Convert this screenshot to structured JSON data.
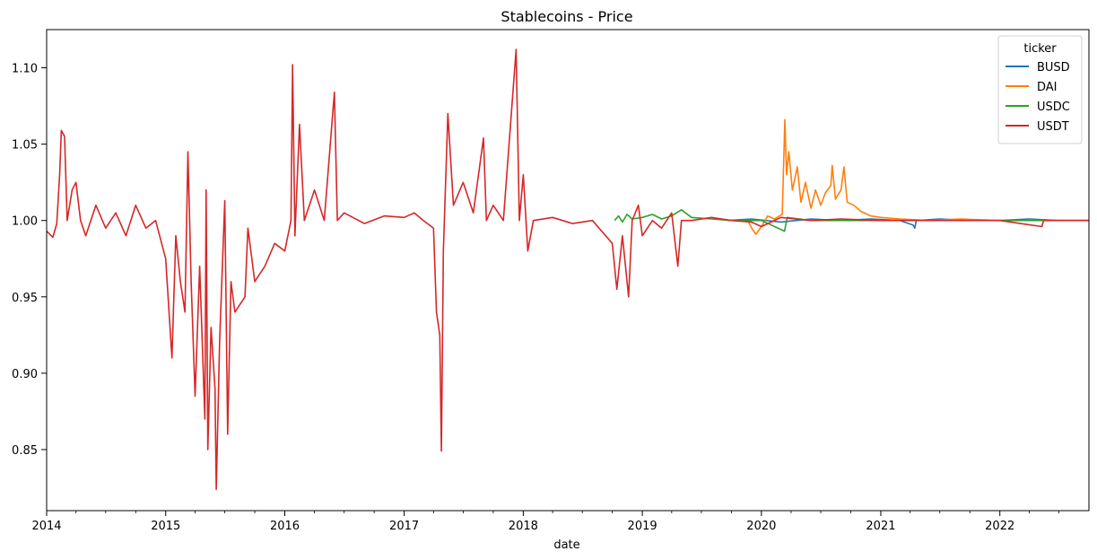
{
  "chart_data": {
    "type": "line",
    "title": "Stablecoins - Price",
    "xlabel": "date",
    "ylabel": "",
    "xlim": [
      "2014-01-01",
      "2022-10-01"
    ],
    "ylim": [
      0.81,
      1.125
    ],
    "x_ticks": [
      "2014",
      "2015",
      "2016",
      "2017",
      "2018",
      "2019",
      "2020",
      "2021",
      "2022"
    ],
    "y_ticks": [
      "0.85",
      "0.90",
      "0.95",
      "1.00",
      "1.05",
      "1.10"
    ],
    "grid": false,
    "legend": {
      "title": "ticker",
      "placement": "top-right"
    },
    "series": [
      {
        "name": "BUSD",
        "color": "#1f77b4",
        "points": [
          [
            "2019-09-20",
            1.0
          ],
          [
            "2019-12-01",
            1.001
          ],
          [
            "2020-03-01",
            0.999
          ],
          [
            "2020-06-01",
            1.001
          ],
          [
            "2020-09-01",
            1.0
          ],
          [
            "2020-12-01",
            1.001
          ],
          [
            "2021-03-01",
            1.0
          ],
          [
            "2021-04-10",
            0.997
          ],
          [
            "2021-04-15",
            0.995
          ],
          [
            "2021-04-20",
            1.0
          ],
          [
            "2021-07-01",
            1.001
          ],
          [
            "2021-10-01",
            1.0
          ],
          [
            "2022-01-01",
            1.0
          ],
          [
            "2022-04-01",
            1.001
          ],
          [
            "2022-07-01",
            1.0
          ],
          [
            "2022-10-01",
            1.0
          ]
        ]
      },
      {
        "name": "DAI",
        "color": "#ff7f0e",
        "points": [
          [
            "2019-11-20",
            1.0
          ],
          [
            "2019-12-05",
            0.994
          ],
          [
            "2019-12-15",
            0.991
          ],
          [
            "2020-01-01",
            0.996
          ],
          [
            "2020-01-20",
            1.003
          ],
          [
            "2020-02-10",
            1.001
          ],
          [
            "2020-03-05",
            1.004
          ],
          [
            "2020-03-13",
            1.066
          ],
          [
            "2020-03-18",
            1.03
          ],
          [
            "2020-03-25",
            1.045
          ],
          [
            "2020-04-05",
            1.02
          ],
          [
            "2020-04-20",
            1.035
          ],
          [
            "2020-05-01",
            1.012
          ],
          [
            "2020-05-15",
            1.025
          ],
          [
            "2020-06-01",
            1.008
          ],
          [
            "2020-06-15",
            1.02
          ],
          [
            "2020-07-01",
            1.01
          ],
          [
            "2020-07-15",
            1.018
          ],
          [
            "2020-08-01",
            1.023
          ],
          [
            "2020-08-05",
            1.036
          ],
          [
            "2020-08-15",
            1.014
          ],
          [
            "2020-09-01",
            1.02
          ],
          [
            "2020-09-10",
            1.035
          ],
          [
            "2020-09-20",
            1.012
          ],
          [
            "2020-10-10",
            1.01
          ],
          [
            "2020-11-01",
            1.006
          ],
          [
            "2020-12-01",
            1.003
          ],
          [
            "2021-01-01",
            1.002
          ],
          [
            "2021-03-01",
            1.001
          ],
          [
            "2021-06-01",
            1.0
          ],
          [
            "2021-09-01",
            1.001
          ],
          [
            "2022-01-01",
            1.0
          ],
          [
            "2022-05-01",
            1.0
          ],
          [
            "2022-10-01",
            1.0
          ]
        ]
      },
      {
        "name": "USDC",
        "color": "#2ca02c",
        "points": [
          [
            "2018-10-08",
            1.0
          ],
          [
            "2018-10-20",
            1.003
          ],
          [
            "2018-11-01",
            0.999
          ],
          [
            "2018-11-15",
            1.004
          ],
          [
            "2018-12-01",
            1.001
          ],
          [
            "2019-01-01",
            1.002
          ],
          [
            "2019-02-01",
            1.004
          ],
          [
            "2019-03-01",
            1.001
          ],
          [
            "2019-04-01",
            1.003
          ],
          [
            "2019-05-01",
            1.007
          ],
          [
            "2019-06-01",
            1.002
          ],
          [
            "2019-08-01",
            1.001
          ],
          [
            "2019-10-01",
            1.0
          ],
          [
            "2020-01-01",
            1.0
          ],
          [
            "2020-03-12",
            0.993
          ],
          [
            "2020-03-20",
            1.002
          ],
          [
            "2020-06-01",
            1.0
          ],
          [
            "2021-01-01",
            1.0
          ],
          [
            "2022-01-01",
            1.0
          ],
          [
            "2022-10-01",
            1.0
          ]
        ]
      },
      {
        "name": "USDT",
        "color": "#d62728",
        "points": [
          [
            "2014-01-01",
            0.993
          ],
          [
            "2014-01-20",
            0.989
          ],
          [
            "2014-02-01",
            0.998
          ],
          [
            "2014-02-10",
            1.03
          ],
          [
            "2014-02-15",
            1.059
          ],
          [
            "2014-02-25",
            1.055
          ],
          [
            "2014-03-05",
            1.0
          ],
          [
            "2014-03-20",
            1.02
          ],
          [
            "2014-04-01",
            1.025
          ],
          [
            "2014-04-15",
            1.0
          ],
          [
            "2014-05-01",
            0.99
          ],
          [
            "2014-06-01",
            1.01
          ],
          [
            "2014-07-01",
            0.995
          ],
          [
            "2014-08-01",
            1.005
          ],
          [
            "2014-09-01",
            0.99
          ],
          [
            "2014-10-01",
            1.01
          ],
          [
            "2014-11-01",
            0.995
          ],
          [
            "2014-12-01",
            1.0
          ],
          [
            "2015-01-01",
            0.975
          ],
          [
            "2015-01-20",
            0.91
          ],
          [
            "2015-02-01",
            0.99
          ],
          [
            "2015-02-15",
            0.96
          ],
          [
            "2015-03-01",
            0.94
          ],
          [
            "2015-03-10",
            1.045
          ],
          [
            "2015-03-20",
            0.96
          ],
          [
            "2015-04-01",
            0.885
          ],
          [
            "2015-04-15",
            0.97
          ],
          [
            "2015-05-01",
            0.87
          ],
          [
            "2015-05-05",
            1.02
          ],
          [
            "2015-05-10",
            0.85
          ],
          [
            "2015-05-20",
            0.93
          ],
          [
            "2015-06-01",
            0.89
          ],
          [
            "2015-06-05",
            0.824
          ],
          [
            "2015-06-15",
            0.92
          ],
          [
            "2015-07-01",
            1.013
          ],
          [
            "2015-07-10",
            0.86
          ],
          [
            "2015-07-20",
            0.96
          ],
          [
            "2015-08-01",
            0.94
          ],
          [
            "2015-09-01",
            0.95
          ],
          [
            "2015-09-10",
            0.995
          ],
          [
            "2015-10-01",
            0.96
          ],
          [
            "2015-11-01",
            0.97
          ],
          [
            "2015-12-01",
            0.985
          ],
          [
            "2016-01-01",
            0.98
          ],
          [
            "2016-01-20",
            1.0
          ],
          [
            "2016-01-25",
            1.102
          ],
          [
            "2016-02-01",
            0.99
          ],
          [
            "2016-02-15",
            1.063
          ],
          [
            "2016-03-01",
            1.0
          ],
          [
            "2016-04-01",
            1.02
          ],
          [
            "2016-05-01",
            1.0
          ],
          [
            "2016-06-01",
            1.084
          ],
          [
            "2016-06-10",
            1.0
          ],
          [
            "2016-07-01",
            1.005
          ],
          [
            "2016-09-01",
            0.998
          ],
          [
            "2016-11-01",
            1.003
          ],
          [
            "2017-01-01",
            1.002
          ],
          [
            "2017-02-01",
            1.005
          ],
          [
            "2017-03-01",
            1.0
          ],
          [
            "2017-04-01",
            0.995
          ],
          [
            "2017-04-10",
            0.94
          ],
          [
            "2017-04-20",
            0.925
          ],
          [
            "2017-04-25",
            0.849
          ],
          [
            "2017-05-01",
            0.98
          ],
          [
            "2017-05-15",
            1.07
          ],
          [
            "2017-06-01",
            1.01
          ],
          [
            "2017-07-01",
            1.025
          ],
          [
            "2017-08-01",
            1.005
          ],
          [
            "2017-09-01",
            1.054
          ],
          [
            "2017-09-10",
            1.0
          ],
          [
            "2017-10-01",
            1.01
          ],
          [
            "2017-11-01",
            1.0
          ],
          [
            "2017-12-10",
            1.112
          ],
          [
            "2017-12-20",
            1.0
          ],
          [
            "2018-01-01",
            1.03
          ],
          [
            "2018-01-15",
            0.98
          ],
          [
            "2018-02-01",
            1.0
          ],
          [
            "2018-04-01",
            1.002
          ],
          [
            "2018-06-01",
            0.998
          ],
          [
            "2018-08-01",
            1.0
          ],
          [
            "2018-10-01",
            0.985
          ],
          [
            "2018-10-15",
            0.955
          ],
          [
            "2018-11-01",
            0.99
          ],
          [
            "2018-11-20",
            0.95
          ],
          [
            "2018-12-01",
            1.0
          ],
          [
            "2018-12-20",
            1.01
          ],
          [
            "2019-01-01",
            0.99
          ],
          [
            "2019-02-01",
            1.0
          ],
          [
            "2019-03-01",
            0.995
          ],
          [
            "2019-04-01",
            1.005
          ],
          [
            "2019-04-20",
            0.97
          ],
          [
            "2019-05-01",
            1.0
          ],
          [
            "2019-06-01",
            1.0
          ],
          [
            "2019-08-01",
            1.002
          ],
          [
            "2019-10-01",
            1.0
          ],
          [
            "2019-12-01",
            0.999
          ],
          [
            "2020-01-01",
            0.996
          ],
          [
            "2020-03-01",
            1.002
          ],
          [
            "2020-06-01",
            1.0
          ],
          [
            "2020-09-01",
            1.001
          ],
          [
            "2021-01-01",
            1.0
          ],
          [
            "2021-06-01",
            1.0
          ],
          [
            "2022-01-01",
            1.0
          ],
          [
            "2022-05-10",
            0.996
          ],
          [
            "2022-05-15",
            1.0
          ],
          [
            "2022-10-01",
            1.0
          ]
        ]
      }
    ]
  }
}
